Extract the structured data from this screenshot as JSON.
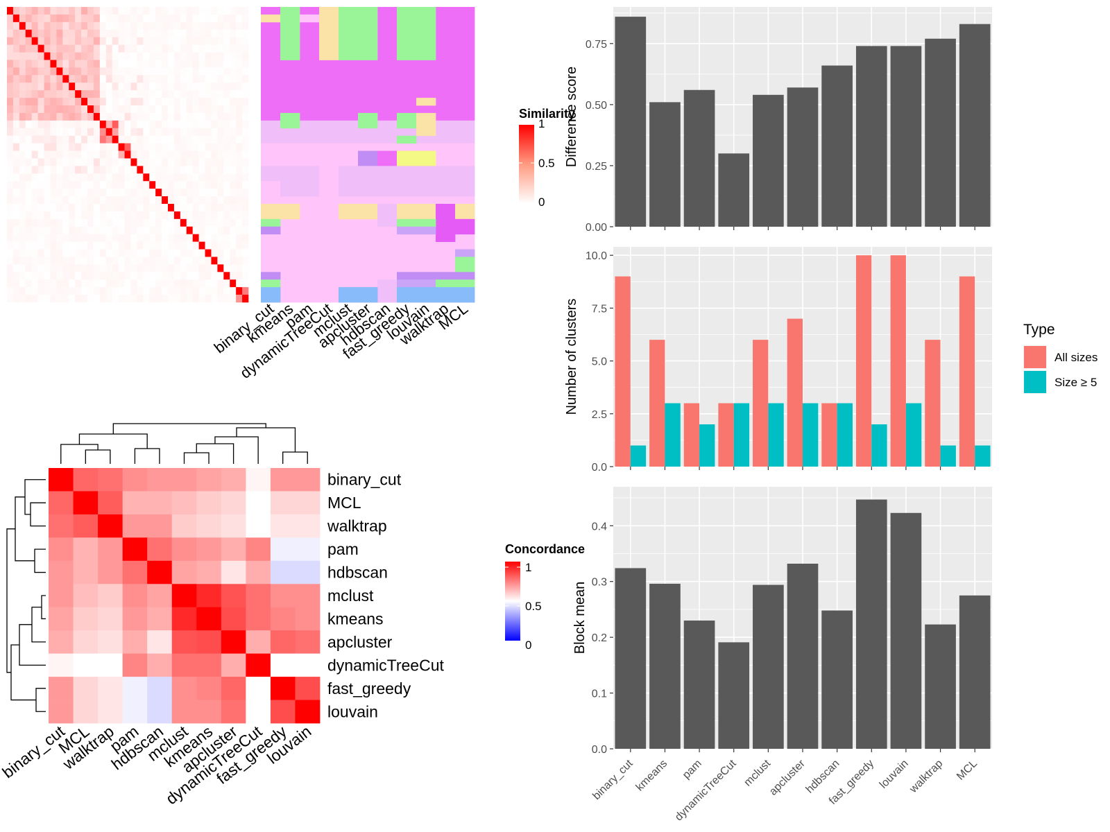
{
  "chart_data": [
    {
      "type": "heatmap",
      "name": "similarity_heatmap",
      "legend_title": "Similarity",
      "legend_ticks": [
        "1",
        "0.5",
        "0"
      ],
      "color_low": "#FFFFFF",
      "color_high": "#FF0000",
      "n_terms": 39,
      "blocks": [
        {
          "start": 0,
          "end": 15,
          "value": 0.25
        },
        {
          "start": 15,
          "end": 18,
          "value": 0.55
        },
        {
          "start": 18,
          "end": 20,
          "value": 0.5
        },
        {
          "start": 37,
          "end": 39,
          "value": 0.6
        }
      ],
      "diagonal_value": 1
    },
    {
      "type": "table",
      "name": "cluster_assignment_grid",
      "methods": [
        "binary_cut",
        "kmeans",
        "pam",
        "dynamicTreeCut",
        "mclust",
        "apcluster",
        "hdbscan",
        "fast_greedy",
        "louvain",
        "walktrap",
        "MCL"
      ],
      "palette": {
        "magenta": "#EE6EF8",
        "lavender": "#F0BEF9",
        "pink": "#FFC4F9",
        "green": "#99F598",
        "tan": "#FBE3A8",
        "yellow": "#F4F986",
        "purple": "#BF8DF4",
        "lightpurple": "#C9A4F7",
        "blue": "#88BBF9",
        "violet": "#E45CF5"
      }
    },
    {
      "type": "heatmap",
      "name": "concordance_heatmap",
      "legend_title": "Concordance",
      "legend_ticks": [
        "1",
        "0.5",
        "0"
      ],
      "color_low": "#0000FF",
      "color_mid": "#FFFFFF",
      "color_high": "#FF0000",
      "labels": [
        "binary_cut",
        "MCL",
        "walktrap",
        "pam",
        "hdbscan",
        "mclust",
        "kmeans",
        "apcluster",
        "dynamicTreeCut",
        "fast_greedy",
        "louvain"
      ],
      "matrix": [
        [
          1.0,
          0.8,
          0.78,
          0.72,
          0.7,
          0.7,
          0.68,
          0.66,
          0.52,
          0.7,
          0.7
        ],
        [
          0.8,
          1.0,
          0.82,
          0.65,
          0.65,
          0.63,
          0.6,
          0.58,
          0.5,
          0.58,
          0.58
        ],
        [
          0.78,
          0.82,
          1.0,
          0.7,
          0.7,
          0.6,
          0.58,
          0.56,
          0.5,
          0.55,
          0.55
        ],
        [
          0.72,
          0.65,
          0.7,
          1.0,
          0.78,
          0.72,
          0.7,
          0.66,
          0.74,
          0.47,
          0.47
        ],
        [
          0.7,
          0.65,
          0.7,
          0.78,
          1.0,
          0.68,
          0.66,
          0.55,
          0.66,
          0.43,
          0.43
        ],
        [
          0.7,
          0.63,
          0.6,
          0.72,
          0.68,
          1.0,
          0.92,
          0.84,
          0.78,
          0.72,
          0.72
        ],
        [
          0.68,
          0.6,
          0.58,
          0.7,
          0.66,
          0.92,
          1.0,
          0.85,
          0.78,
          0.74,
          0.72
        ],
        [
          0.66,
          0.58,
          0.56,
          0.66,
          0.55,
          0.84,
          0.85,
          1.0,
          0.66,
          0.8,
          0.78
        ],
        [
          0.52,
          0.5,
          0.5,
          0.74,
          0.66,
          0.78,
          0.78,
          0.66,
          1.0,
          0.5,
          0.5
        ],
        [
          0.7,
          0.58,
          0.55,
          0.47,
          0.43,
          0.72,
          0.74,
          0.8,
          0.5,
          1.0,
          0.85
        ],
        [
          0.7,
          0.58,
          0.55,
          0.47,
          0.43,
          0.72,
          0.72,
          0.78,
          0.5,
          0.85,
          1.0
        ]
      ]
    },
    {
      "type": "bar",
      "name": "difference_score",
      "categories": [
        "binary_cut",
        "kmeans",
        "pam",
        "dynamicTreeCut",
        "mclust",
        "apcluster",
        "hdbscan",
        "fast_greedy",
        "louvain",
        "walktrap",
        "MCL"
      ],
      "values": [
        0.86,
        0.51,
        0.56,
        0.3,
        0.54,
        0.57,
        0.66,
        0.74,
        0.74,
        0.77,
        0.83
      ],
      "ylabel": "Difference score",
      "ylim": [
        0,
        0.9
      ],
      "yticks": [
        "0.00",
        "0.25",
        "0.50",
        "0.75"
      ],
      "color": "#595959",
      "panel_bg": "#EBEBEB"
    },
    {
      "type": "bar",
      "name": "number_of_clusters",
      "categories": [
        "binary_cut",
        "kmeans",
        "pam",
        "dynamicTreeCut",
        "mclust",
        "apcluster",
        "hdbscan",
        "fast_greedy",
        "louvain",
        "walktrap",
        "MCL"
      ],
      "series": [
        {
          "name": "All sizes",
          "values": [
            9,
            6,
            3,
            3,
            6,
            7,
            3,
            10,
            10,
            6,
            9
          ],
          "color": "#F8766D"
        },
        {
          "name": "Size ≥ 5",
          "values": [
            1,
            3,
            2,
            3,
            3,
            3,
            3,
            2,
            3,
            1,
            1
          ],
          "color": "#00BFC4"
        }
      ],
      "ylabel": "Number of clusters",
      "ylim": [
        0,
        10.4
      ],
      "yticks": [
        "0.0",
        "2.5",
        "5.0",
        "7.5",
        "10.0"
      ],
      "legend_title": "Type",
      "legend_position": "right",
      "panel_bg": "#EBEBEB"
    },
    {
      "type": "bar",
      "name": "block_mean",
      "categories": [
        "binary_cut",
        "kmeans",
        "pam",
        "dynamicTreeCut",
        "mclust",
        "apcluster",
        "hdbscan",
        "fast_greedy",
        "louvain",
        "walktrap",
        "MCL"
      ],
      "values": [
        0.324,
        0.296,
        0.23,
        0.191,
        0.294,
        0.332,
        0.248,
        0.447,
        0.423,
        0.223,
        0.275
      ],
      "ylabel": "Block mean",
      "ylim": [
        0,
        0.47
      ],
      "yticks": [
        "0.0",
        "0.1",
        "0.2",
        "0.3",
        "0.4"
      ],
      "color": "#595959",
      "panel_bg": "#EBEBEB"
    }
  ]
}
